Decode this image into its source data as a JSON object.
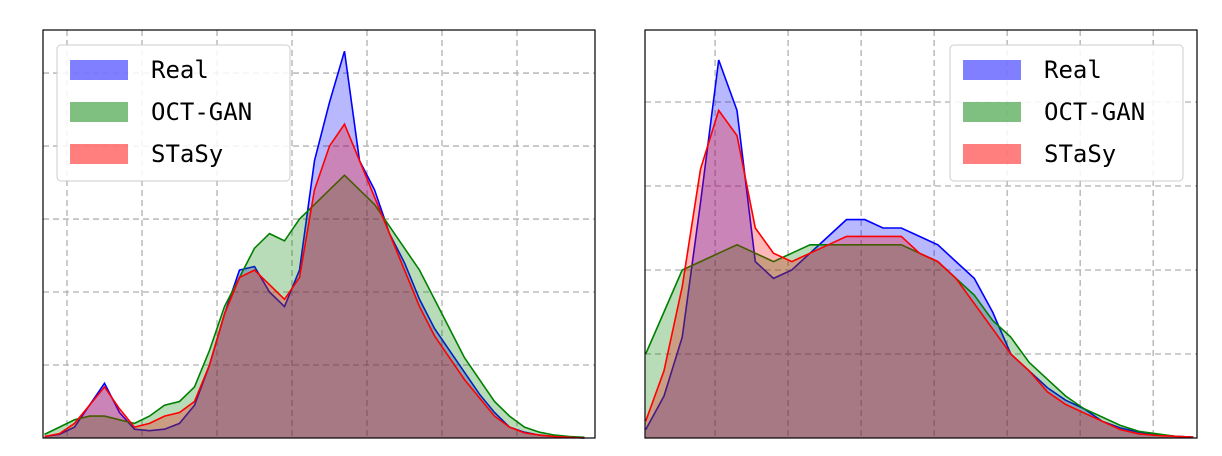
{
  "chart_data": [
    {
      "type": "area",
      "legend": "upper left",
      "grid": true,
      "xlim": [
        -0.32,
        7.04
      ],
      "ylim": [
        0,
        5.59
      ],
      "xticks": [
        0,
        1,
        2,
        3,
        4,
        5,
        6
      ],
      "yticks": [
        1,
        2,
        3,
        4,
        5
      ],
      "x": [
        -0.3,
        -0.1,
        0.1,
        0.3,
        0.5,
        0.7,
        0.9,
        1.1,
        1.3,
        1.5,
        1.7,
        1.9,
        2.1,
        2.3,
        2.5,
        2.7,
        2.9,
        3.1,
        3.3,
        3.5,
        3.7,
        3.9,
        4.1,
        4.3,
        4.5,
        4.7,
        4.9,
        5.1,
        5.3,
        5.5,
        5.7,
        5.9,
        6.1,
        6.3,
        6.5,
        6.7,
        6.9
      ],
      "series": [
        {
          "name": "Real",
          "color": "#0000ff",
          "values": [
            0.02,
            0.05,
            0.15,
            0.45,
            0.75,
            0.35,
            0.12,
            0.1,
            0.12,
            0.2,
            0.45,
            1.0,
            1.7,
            2.3,
            2.35,
            2.0,
            1.8,
            2.3,
            3.8,
            4.6,
            5.3,
            3.8,
            3.4,
            2.8,
            2.4,
            1.9,
            1.5,
            1.2,
            0.9,
            0.6,
            0.35,
            0.15,
            0.08,
            0.04,
            0.02,
            0.01,
            0
          ]
        },
        {
          "name": "OCT-GAN",
          "color": "#008000",
          "values": [
            0.05,
            0.15,
            0.25,
            0.3,
            0.3,
            0.25,
            0.2,
            0.3,
            0.45,
            0.5,
            0.7,
            1.2,
            1.8,
            2.2,
            2.6,
            2.8,
            2.7,
            3.0,
            3.2,
            3.4,
            3.6,
            3.4,
            3.2,
            2.9,
            2.6,
            2.3,
            1.9,
            1.5,
            1.1,
            0.8,
            0.5,
            0.3,
            0.15,
            0.08,
            0.04,
            0.02,
            0.01
          ]
        },
        {
          "name": "STaSy",
          "color": "#ff0000",
          "values": [
            0.02,
            0.06,
            0.2,
            0.45,
            0.7,
            0.4,
            0.15,
            0.2,
            0.3,
            0.35,
            0.5,
            1.0,
            1.7,
            2.2,
            2.3,
            2.1,
            1.9,
            2.2,
            3.4,
            4.0,
            4.3,
            3.8,
            3.3,
            2.8,
            2.3,
            1.8,
            1.4,
            1.1,
            0.8,
            0.55,
            0.3,
            0.15,
            0.07,
            0.04,
            0.02,
            0.01,
            0
          ]
        }
      ]
    },
    {
      "type": "area",
      "legend": "upper right",
      "grid": true,
      "xlim": [
        -0.96,
        6.6
      ],
      "ylim": [
        0,
        4.857
      ],
      "xticks": [
        0,
        1,
        2,
        3,
        4,
        5,
        6
      ],
      "yticks": [
        1,
        2,
        3,
        4
      ],
      "x": [
        -0.95,
        -0.7,
        -0.45,
        -0.2,
        0.05,
        0.3,
        0.55,
        0.8,
        1.05,
        1.3,
        1.55,
        1.8,
        2.05,
        2.3,
        2.55,
        2.8,
        3.05,
        3.3,
        3.55,
        3.8,
        4.05,
        4.3,
        4.55,
        4.8,
        5.05,
        5.3,
        5.55,
        5.8,
        6.05,
        6.3,
        6.55
      ],
      "series": [
        {
          "name": "Real",
          "color": "#0000ff",
          "values": [
            0.1,
            0.5,
            1.2,
            2.8,
            4.5,
            3.9,
            2.1,
            1.9,
            2.0,
            2.2,
            2.4,
            2.6,
            2.6,
            2.5,
            2.5,
            2.4,
            2.3,
            2.1,
            1.9,
            1.5,
            1.0,
            0.8,
            0.6,
            0.45,
            0.35,
            0.2,
            0.12,
            0.07,
            0.04,
            0.02,
            0.01
          ]
        },
        {
          "name": "OCT-GAN",
          "color": "#008000",
          "values": [
            1.0,
            1.5,
            2.0,
            2.1,
            2.2,
            2.3,
            2.2,
            2.1,
            2.2,
            2.3,
            2.3,
            2.3,
            2.3,
            2.3,
            2.3,
            2.2,
            2.1,
            1.9,
            1.7,
            1.4,
            1.2,
            0.9,
            0.7,
            0.5,
            0.35,
            0.25,
            0.15,
            0.08,
            0.05,
            0.02,
            0.01
          ]
        },
        {
          "name": "STaSy",
          "color": "#ff0000",
          "values": [
            0.2,
            0.8,
            1.8,
            3.2,
            3.9,
            3.6,
            2.5,
            2.2,
            2.1,
            2.2,
            2.3,
            2.4,
            2.4,
            2.4,
            2.4,
            2.2,
            2.1,
            1.9,
            1.6,
            1.3,
            1.0,
            0.8,
            0.55,
            0.4,
            0.3,
            0.2,
            0.1,
            0.05,
            0.03,
            0.02,
            0.01
          ]
        }
      ]
    }
  ]
}
